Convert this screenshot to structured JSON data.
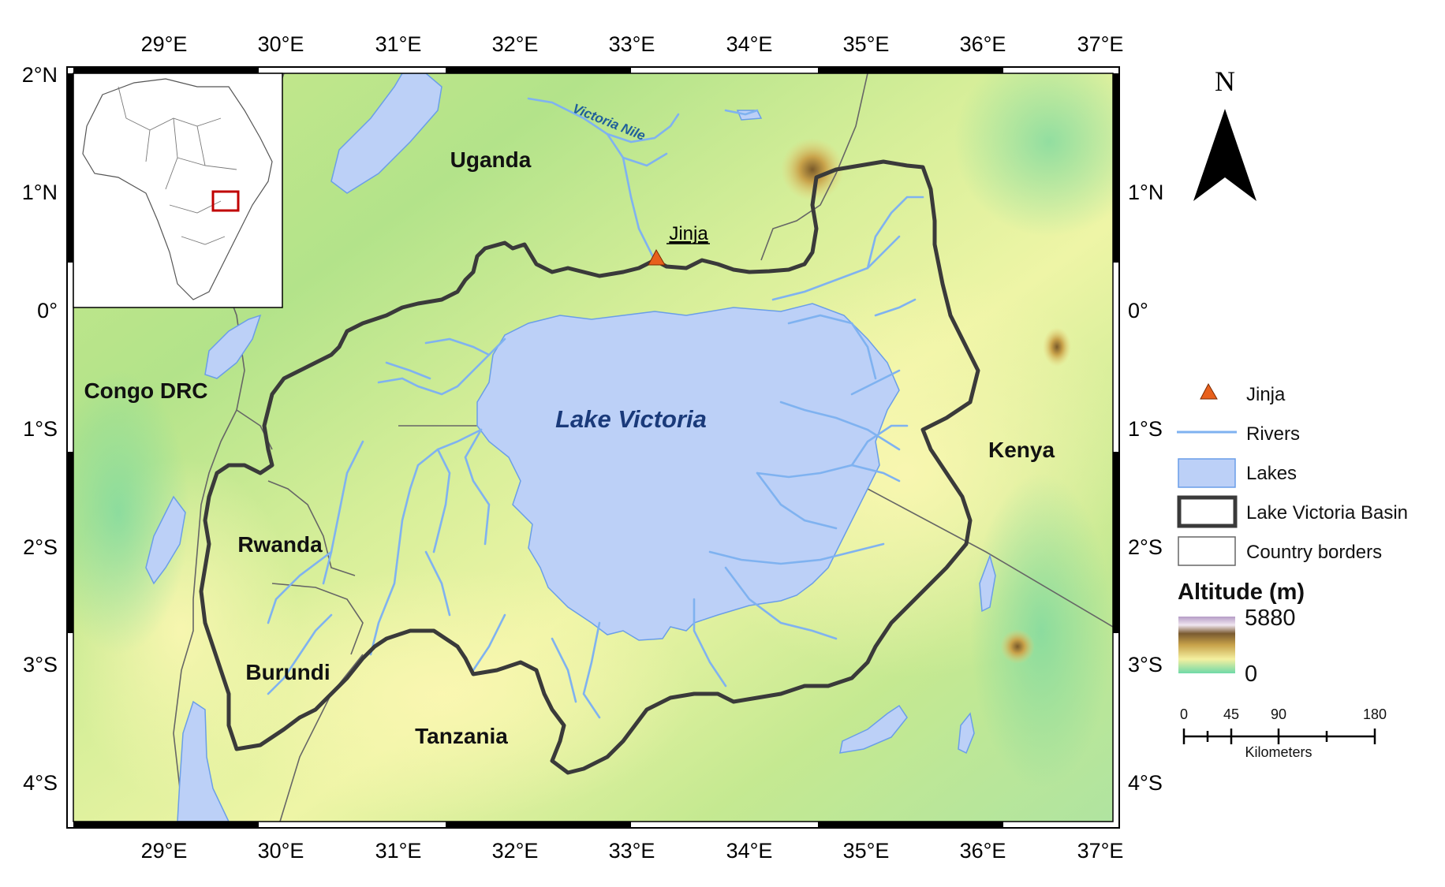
{
  "map": {
    "graticule": {
      "lon_labels": [
        "29°E",
        "30°E",
        "31°E",
        "32°E",
        "33°E",
        "34°E",
        "35°E",
        "36°E",
        "37°E"
      ],
      "lat_labels": [
        "2°N",
        "1°N",
        "0°",
        "1°S",
        "2°S",
        "3°S",
        "4°S"
      ]
    },
    "countries": {
      "uganda": "Uganda",
      "congo": "Congo DRC",
      "rwanda": "Rwanda",
      "burundi": "Burundi",
      "tanzania": "Tanzania",
      "kenya": "Kenya"
    },
    "lake_label": "Lake Victoria",
    "river_label": "Victoria Nile",
    "city_label": "Jinja",
    "north_label": "N",
    "colors": {
      "lake_fill": "#bcd0f7",
      "lake_stroke": "#6a9ee8",
      "river": "#7fb2f0",
      "basin_border": "#3a3a3a",
      "country_border": "#666666",
      "jinja_marker": "#e8601c",
      "inset_box": "#c00000"
    }
  },
  "legend": {
    "items": [
      {
        "symbol": "triangle",
        "label": "Jinja"
      },
      {
        "symbol": "line",
        "label": "Rivers"
      },
      {
        "symbol": "fill",
        "label": "Lakes"
      },
      {
        "symbol": "thick-box",
        "label": "Lake Victoria Basin"
      },
      {
        "symbol": "thin-box",
        "label": "Country borders"
      }
    ],
    "altitude_title": "Altitude (m)",
    "altitude_max": "5880",
    "altitude_min": "0"
  },
  "scale_bar": {
    "ticks": [
      "0",
      "45",
      "90",
      "180"
    ],
    "unit": "Kilometers"
  }
}
